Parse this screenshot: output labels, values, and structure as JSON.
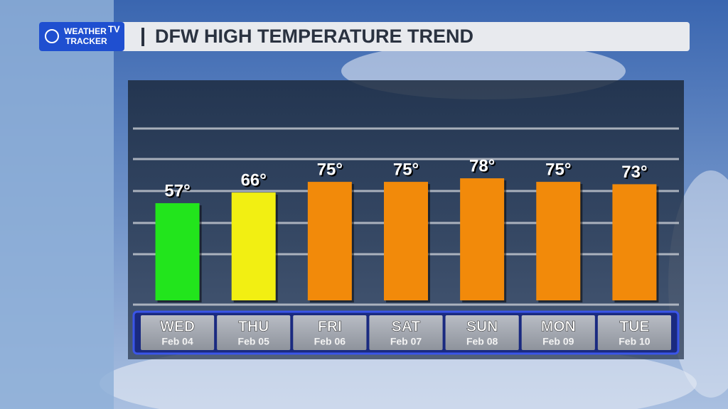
{
  "logo": {
    "line1": "WEATHER",
    "line2": "TRACKER",
    "badge": "TV"
  },
  "chart_data": {
    "type": "bar",
    "title": "DFW HIGH TEMPERATURE TREND",
    "categories": [
      "WED",
      "THU",
      "FRI",
      "SAT",
      "SUN",
      "MON",
      "TUE"
    ],
    "dates": [
      "Feb 04",
      "Feb 05",
      "Feb 06",
      "Feb 07",
      "Feb 08",
      "Feb 09",
      "Feb 10"
    ],
    "values": [
      57,
      66,
      75,
      75,
      78,
      75,
      73
    ],
    "value_labels": [
      "57°",
      "66°",
      "75°",
      "75°",
      "78°",
      "75°",
      "73°"
    ],
    "colors": [
      "#22e51c",
      "#f2ef12",
      "#f28a0a",
      "#f28a0a",
      "#f28a0a",
      "#f28a0a",
      "#f28a0a"
    ],
    "ylim": [
      -25,
      120
    ]
  }
}
